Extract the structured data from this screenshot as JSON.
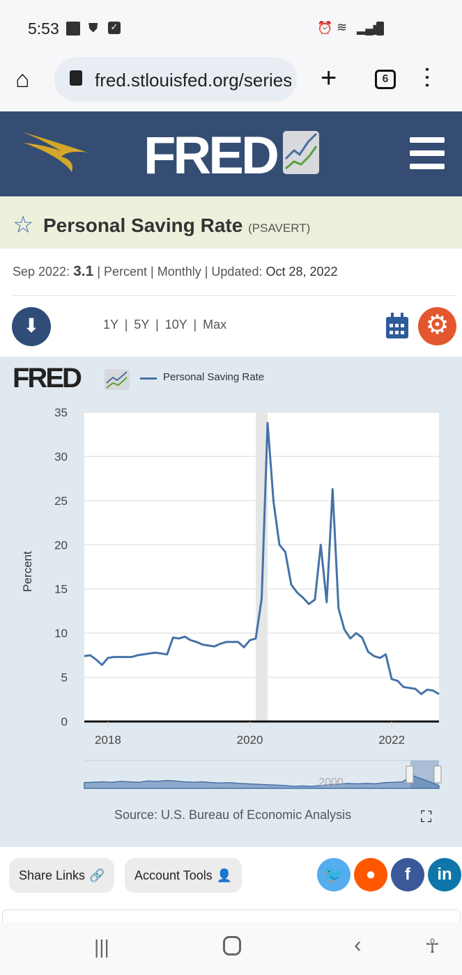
{
  "status": {
    "time": "5:53"
  },
  "browser": {
    "url": "fred.stlouisfed.org/series/PSAVERT",
    "tab_count": "6"
  },
  "header": {
    "logo": "FRED"
  },
  "series": {
    "title": "Personal Saving Rate",
    "id": "(PSAVERT)",
    "date_label": "Sep 2022:",
    "value": "3.1",
    "meta": "| Percent | Monthly | Updated:",
    "updated": "Oct 28, 2022"
  },
  "ranges": [
    "1Y",
    "5Y",
    "10Y",
    "Max"
  ],
  "chart_data": {
    "type": "line",
    "title": "Personal Saving Rate",
    "ylabel": "Percent",
    "ylim": [
      0,
      35
    ],
    "yticks": [
      "0",
      "5",
      "10",
      "15",
      "20",
      "25",
      "30",
      "35"
    ],
    "xticks": [
      "2018",
      "2020",
      "2022"
    ],
    "legend": "Personal Saving Rate",
    "logo": "FRED",
    "start": "2017-09",
    "frequency": "monthly",
    "end": "2022-09",
    "recession": [
      "2020-02",
      "2020-04"
    ],
    "values": [
      7.4,
      7.5,
      7.0,
      6.4,
      7.2,
      7.3,
      7.3,
      7.3,
      7.3,
      7.5,
      7.6,
      7.7,
      7.8,
      7.7,
      7.6,
      9.5,
      9.4,
      9.6,
      9.2,
      9.0,
      8.7,
      8.6,
      8.5,
      8.8,
      9.0,
      9.0,
      9.0,
      8.4,
      9.2,
      9.4,
      13.9,
      33.8,
      24.9,
      20.0,
      19.2,
      15.5,
      14.6,
      14.0,
      13.3,
      13.8,
      20.0,
      13.5,
      26.3,
      12.8,
      10.4,
      9.4,
      10.0,
      9.5,
      7.9,
      7.4,
      7.2,
      7.6,
      4.8,
      4.6,
      3.9,
      3.8,
      3.7,
      3.1,
      3.6,
      3.5,
      3.1
    ],
    "navigator_label": "2000",
    "navigator_values": [
      7,
      7.5,
      8,
      7.5,
      8.5,
      8,
      7.5,
      9,
      8.5,
      9.5,
      9,
      8,
      7.5,
      8,
      7,
      6.5,
      7,
      6,
      5.5,
      5,
      4.5,
      4,
      3.5,
      2.5,
      3,
      2.5,
      3.5,
      4.5,
      5,
      6,
      5.5,
      6,
      5.5,
      7,
      7.5,
      8,
      16,
      12,
      8,
      3
    ]
  },
  "source": "Source: U.S. Bureau of Economic Analysis",
  "actions": {
    "share": "Share Links",
    "account": "Account Tools"
  },
  "colors": {
    "header": "#354d72",
    "line": "#4572a7",
    "accent": "#e4572e"
  }
}
